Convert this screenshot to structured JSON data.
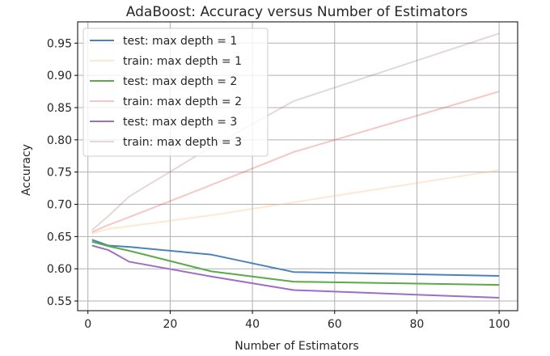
{
  "chart_data": {
    "type": "line",
    "title": "AdaBoost: Accuracy versus Number of Estimators",
    "xlabel": "Number of Estimators",
    "ylabel": "Accuracy",
    "xlim": [
      -2.5,
      104.5
    ],
    "ylim": [
      0.535,
      0.983
    ],
    "xticks": [
      0,
      20,
      40,
      60,
      80,
      100
    ],
    "yticks": [
      0.55,
      0.6,
      0.65,
      0.7,
      0.75,
      0.8,
      0.85,
      0.9,
      0.95
    ],
    "x": [
      1,
      5,
      10,
      30,
      50,
      100
    ],
    "grid": true,
    "legend_position": "upper-left",
    "series": [
      {
        "name": "test: max depth = 1",
        "color": "#4b82b8",
        "opacity": 1.0,
        "values": [
          0.645,
          0.636,
          0.634,
          0.622,
          0.595,
          0.589
        ]
      },
      {
        "name": "train: max depth = 1",
        "color": "#ffbb80",
        "opacity": 0.35,
        "values": [
          0.655,
          0.662,
          0.666,
          0.683,
          0.703,
          0.753
        ]
      },
      {
        "name": "test: max depth = 2",
        "color": "#5aaa46",
        "opacity": 1.0,
        "values": [
          0.642,
          0.635,
          0.628,
          0.596,
          0.58,
          0.575
        ]
      },
      {
        "name": "train: max depth = 2",
        "color": "#d9463f",
        "opacity": 0.3,
        "values": [
          0.657,
          0.668,
          0.68,
          0.73,
          0.781,
          0.875
        ]
      },
      {
        "name": "test: max depth = 3",
        "color": "#9c6ec6",
        "opacity": 1.0,
        "values": [
          0.636,
          0.629,
          0.611,
          0.588,
          0.567,
          0.555
        ]
      },
      {
        "name": "train: max depth = 3",
        "color": "#a05a5e",
        "opacity": 0.25,
        "values": [
          0.66,
          0.682,
          0.712,
          0.789,
          0.86,
          0.965
        ]
      }
    ]
  }
}
